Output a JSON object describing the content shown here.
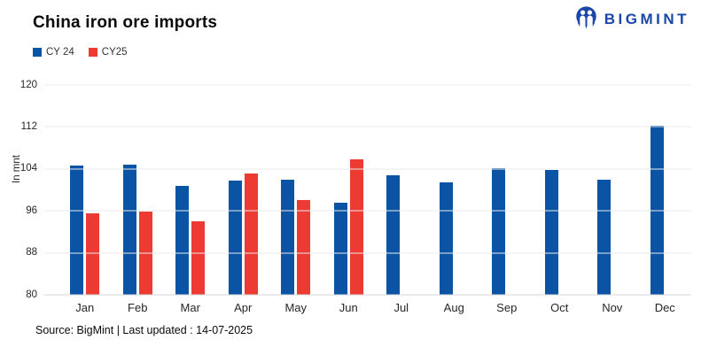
{
  "header": {
    "title": "China iron ore imports",
    "brand": "BIGMINT"
  },
  "footer": {
    "source": "Source: BigMint | Last updated : 14-07-2025"
  },
  "colors": {
    "cy24_blue": "#0B54A5",
    "cy25_red": "#ED3A33",
    "brand_navy": "#1A47A8",
    "gridline": "#ebebeb"
  },
  "chart_data": {
    "type": "bar",
    "title": "China iron ore imports",
    "xlabel": "",
    "ylabel": "In mnt",
    "ylim": [
      80,
      120
    ],
    "yticks": [
      80,
      88,
      96,
      104,
      112,
      120
    ],
    "grid": "horizontal",
    "legend_position": "top-left",
    "categories": [
      "Jan",
      "Feb",
      "Mar",
      "Apr",
      "May",
      "Jun",
      "Jul",
      "Aug",
      "Sep",
      "Oct",
      "Nov",
      "Dec"
    ],
    "series": [
      {
        "name": "CY 24",
        "color": "#0B54A5",
        "values": [
          104.7,
          104.8,
          100.7,
          101.8,
          102.0,
          97.6,
          102.8,
          101.4,
          104.1,
          103.8,
          101.9,
          112.3
        ]
      },
      {
        "name": "CY25",
        "color": "#ED3A33",
        "values": [
          95.6,
          95.9,
          94.0,
          103.1,
          98.1,
          105.9,
          null,
          null,
          null,
          null,
          null,
          null
        ]
      }
    ]
  }
}
